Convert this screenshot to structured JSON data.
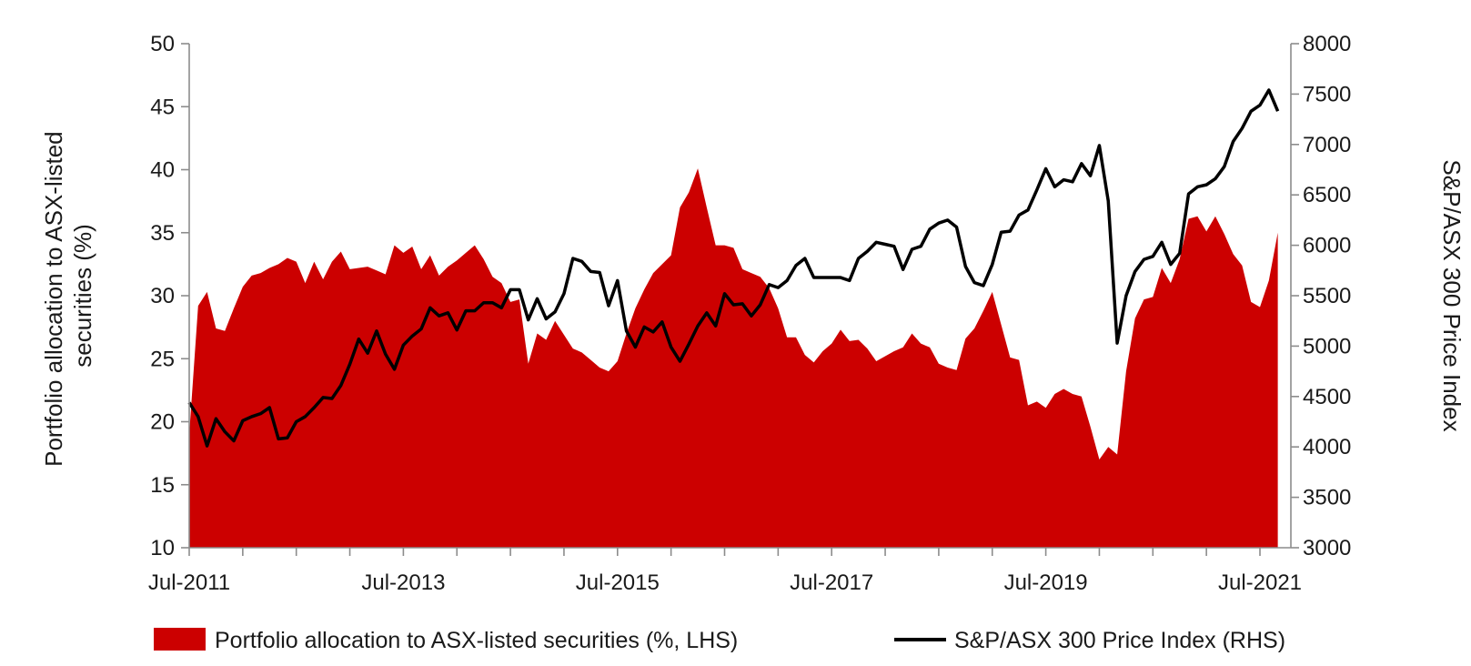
{
  "chart_data": {
    "type": "area+line",
    "title": "",
    "x_tick_labels": [
      "Jul-2011",
      "Jul-2013",
      "Jul-2015",
      "Jul-2017",
      "Jul-2019",
      "Jul-2021"
    ],
    "ylabel_left": [
      "Portfolio allocation to ASX-listed",
      "securities (%)"
    ],
    "ylabel_right": "S&P/ASX 300 Price Index",
    "ylim_left": [
      10,
      50
    ],
    "ylim_right": [
      3000,
      8000
    ],
    "yticks_left": [
      "10",
      "15",
      "20",
      "25",
      "30",
      "35",
      "40",
      "45",
      "50"
    ],
    "yticks_right": [
      "3000",
      "3500",
      "4000",
      "4500",
      "5000",
      "5500",
      "6000",
      "6500",
      "7000",
      "7500",
      "8000"
    ],
    "x_start": "Jul-2011",
    "x_frequency": "monthly",
    "series": [
      {
        "name": "Portfolio allocation to ASX-listed securities (%, LHS)",
        "type": "area",
        "axis": "left",
        "color": "#cc0000",
        "values": [
          19.0,
          29.2,
          30.3,
          27.4,
          27.2,
          29.0,
          30.7,
          31.6,
          31.8,
          32.2,
          32.5,
          33.0,
          32.7,
          31.0,
          32.7,
          31.3,
          32.7,
          33.5,
          32.1,
          32.2,
          32.3,
          32.0,
          31.7,
          34.0,
          33.4,
          33.9,
          32.1,
          33.2,
          31.6,
          32.3,
          32.8,
          33.4,
          34.0,
          32.9,
          31.5,
          31.0,
          29.5,
          29.7,
          24.6,
          27.0,
          26.5,
          28.0,
          26.9,
          25.8,
          25.5,
          24.9,
          24.3,
          24.0,
          24.8,
          27.0,
          29.0,
          30.5,
          31.8,
          32.5,
          33.2,
          37.0,
          38.2,
          40.1,
          37.0,
          34.0,
          34.0,
          33.8,
          32.1,
          31.8,
          31.5,
          30.6,
          29.0,
          26.7,
          26.7,
          25.3,
          24.7,
          25.6,
          26.2,
          27.3,
          26.4,
          26.5,
          25.8,
          24.8,
          25.2,
          25.6,
          25.9,
          27.0,
          26.2,
          25.9,
          24.6,
          24.3,
          24.1,
          26.6,
          27.4,
          28.8,
          30.3,
          27.7,
          25.1,
          24.9,
          21.3,
          21.6,
          21.1,
          22.2,
          22.6,
          22.2,
          22.0,
          19.6,
          17.0,
          18.0,
          17.4,
          24.0,
          28.2,
          29.7,
          29.9,
          32.2,
          31.0,
          32.9,
          36.1,
          36.3,
          35.1,
          36.3,
          34.9,
          33.3,
          32.4,
          29.5,
          29.1,
          31.2,
          35.0
        ]
      },
      {
        "name": "S&P/ASX 300 Price Index (RHS)",
        "type": "line",
        "axis": "right",
        "color": "#000000",
        "values": [
          4440,
          4300,
          4010,
          4280,
          4150,
          4060,
          4260,
          4300,
          4330,
          4390,
          4080,
          4090,
          4250,
          4300,
          4390,
          4490,
          4480,
          4610,
          4820,
          5070,
          4930,
          5150,
          4920,
          4770,
          5010,
          5100,
          5170,
          5380,
          5300,
          5330,
          5160,
          5350,
          5350,
          5430,
          5430,
          5380,
          5560,
          5560,
          5260,
          5470,
          5270,
          5340,
          5520,
          5870,
          5840,
          5740,
          5730,
          5400,
          5650,
          5150,
          4990,
          5190,
          5140,
          5240,
          4990,
          4850,
          5020,
          5200,
          5330,
          5200,
          5520,
          5410,
          5420,
          5300,
          5410,
          5610,
          5580,
          5650,
          5800,
          5870,
          5680,
          5680,
          5680,
          5680,
          5650,
          5870,
          5940,
          6030,
          6010,
          5990,
          5760,
          5960,
          5990,
          6160,
          6220,
          6250,
          6180,
          5790,
          5630,
          5600,
          5810,
          6130,
          6140,
          6300,
          6350,
          6550,
          6760,
          6580,
          6650,
          6630,
          6810,
          6690,
          6990,
          6440,
          5030,
          5500,
          5740,
          5860,
          5890,
          6030,
          5810,
          5920,
          6510,
          6580,
          6600,
          6660,
          6780,
          7030,
          7160,
          7330,
          7390,
          7540,
          7330
        ]
      }
    ],
    "legend": [
      "Portfolio allocation to ASX-listed securities (%, LHS)",
      "S&P/ASX 300 Price Index (RHS)"
    ],
    "legend_position": "bottom"
  }
}
